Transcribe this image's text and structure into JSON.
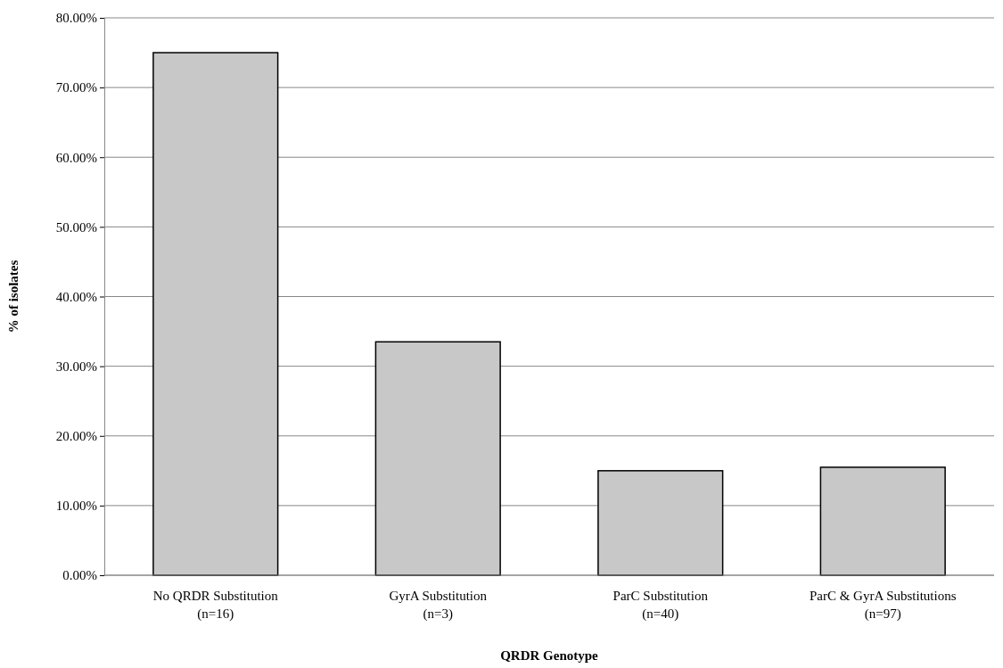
{
  "chart_data": {
    "type": "bar",
    "xlabel": "QRDR Genotype",
    "ylabel": "% of isolates",
    "categories": [
      "No QRDR Substitution\n(n=16)",
      "GyrA Substitution\n(n=3)",
      "ParC Substitution\n(n=40)",
      "ParC & GyrA Substitutions\n(n=97)"
    ],
    "values": [
      75,
      33.5,
      15,
      15.5
    ],
    "color": "#c8c8c8",
    "ylim": [
      0,
      80
    ],
    "yticks": [
      {
        "value": 0,
        "label": "0.00%"
      },
      {
        "value": 10,
        "label": "10.00%"
      },
      {
        "value": 20,
        "label": "20.00%"
      },
      {
        "value": 30,
        "label": "30.00%"
      },
      {
        "value": 40,
        "label": "40.00%"
      },
      {
        "value": 50,
        "label": "50.00%"
      },
      {
        "value": 60,
        "label": "60.00%"
      },
      {
        "value": 70,
        "label": "70.00%"
      },
      {
        "value": 80,
        "label": "80.00%"
      }
    ],
    "grid": "y"
  }
}
